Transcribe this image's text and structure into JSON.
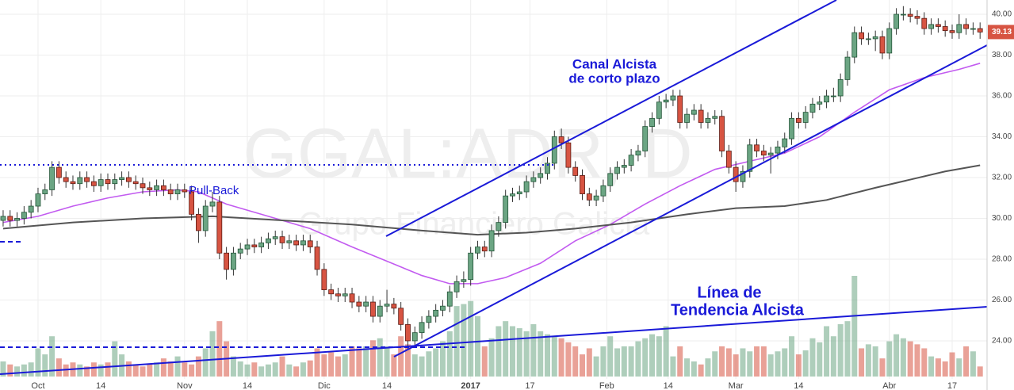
{
  "chart_data": {
    "type": "candlestick",
    "watermark": "GGAL:ADR, D",
    "watermark_subtitle": "Grupo Financiero Galicia",
    "annotations": {
      "channel": [
        "Canal Alcista",
        "de corto plazo"
      ],
      "trend": [
        "Línea de",
        "Tendencia Alcista"
      ],
      "pullback": "Pull-Back"
    },
    "xlim": [
      -0.45,
      141.0
    ],
    "xticks": [
      {
        "value": 5,
        "label": "Oct"
      },
      {
        "value": 14,
        "label": "14"
      },
      {
        "value": 26,
        "label": "Nov"
      },
      {
        "value": 35,
        "label": "14"
      },
      {
        "value": 46,
        "label": "Dic"
      },
      {
        "value": 55,
        "label": "14"
      },
      {
        "value": 67,
        "label": "2017"
      },
      {
        "value": 75.5,
        "label": "17"
      },
      {
        "value": 86.5,
        "label": "Feb"
      },
      {
        "value": 95.3,
        "label": "14"
      },
      {
        "value": 105,
        "label": "Mar"
      },
      {
        "value": 114,
        "label": "14"
      },
      {
        "value": 127,
        "label": "Abr"
      },
      {
        "value": 136,
        "label": "17"
      }
    ],
    "ylim": [
      21.59,
      40.7
    ],
    "yticks": [
      {
        "value": 24,
        "label": "24.00"
      },
      {
        "value": 26,
        "label": "26.00"
      },
      {
        "value": 28,
        "label": "28.00"
      },
      {
        "value": 30,
        "label": "30.00"
      },
      {
        "value": 32,
        "label": "32.00"
      },
      {
        "value": 34,
        "label": "34.00"
      },
      {
        "value": 36,
        "label": "36.00"
      },
      {
        "value": 38,
        "label": "38.00"
      },
      {
        "value": 40,
        "label": "40.00"
      }
    ],
    "grid": true,
    "up_color": "#6ba583",
    "down_color": "#d75442",
    "open": [
      29.9,
      30.1,
      29.9,
      30.0,
      30.3,
      30.6,
      31.2,
      31.4,
      32.5,
      32.0,
      31.8,
      31.7,
      32.0,
      31.8,
      31.6,
      31.9,
      31.7,
      31.9,
      32.0,
      31.8,
      31.7,
      31.5,
      31.4,
      31.6,
      31.4,
      31.2,
      31.4,
      31.3,
      30.2,
      29.4,
      30.6,
      30.8,
      28.3,
      27.5,
      28.3,
      28.5,
      28.7,
      28.6,
      28.8,
      29.0,
      29.1,
      28.8,
      28.9,
      28.7,
      28.9,
      28.6,
      27.5,
      26.5,
      26.3,
      26.2,
      26.3,
      25.9,
      25.7,
      25.9,
      25.2,
      25.7,
      25.8,
      25.6,
      24.8,
      24.0,
      24.4,
      24.9,
      25.2,
      25.5,
      25.7,
      26.4,
      26.9,
      27.0,
      28.3,
      28.6,
      28.4,
      29.4,
      29.8,
      31.1,
      31.2,
      31.3,
      31.8,
      32.0,
      32.2,
      32.7,
      34.0,
      33.7,
      32.5,
      32.1,
      31.2,
      30.9,
      31.1,
      31.6,
      32.2,
      32.5,
      32.6,
      33.1,
      33.3,
      34.5,
      34.9,
      35.7,
      35.8,
      36.0,
      34.7,
      35.1,
      35.3,
      34.7,
      34.9,
      35.0,
      33.3,
      32.5,
      31.8,
      32.3,
      33.6,
      33.3,
      33.1,
      33.2,
      33.5,
      33.9,
      34.9,
      34.7,
      35.2,
      35.6,
      35.7,
      36.0,
      36.0,
      36.8,
      37.9,
      39.1,
      38.8,
      38.8,
      38.9,
      38.1,
      39.3,
      40.0,
      40.0,
      39.9,
      39.8,
      39.3,
      39.5,
      39.4,
      39.2,
      39.1,
      39.5,
      39.3,
      39.3
    ],
    "high": [
      30.4,
      30.4,
      30.3,
      30.6,
      30.9,
      31.5,
      31.7,
      32.8,
      32.8,
      32.3,
      32.1,
      32.3,
      32.3,
      32.1,
      32.2,
      32.2,
      32.2,
      32.3,
      32.3,
      32.1,
      32.0,
      31.8,
      31.9,
      31.9,
      31.7,
      31.7,
      31.7,
      31.6,
      30.5,
      30.9,
      31.3,
      31.1,
      28.6,
      28.6,
      28.8,
      29.0,
      29.0,
      29.1,
      29.3,
      29.4,
      29.4,
      29.2,
      29.2,
      29.2,
      29.2,
      28.9,
      27.8,
      26.8,
      26.6,
      26.6,
      26.6,
      26.2,
      26.2,
      26.2,
      26.0,
      26.5,
      26.1,
      25.9,
      25.1,
      24.7,
      25.2,
      25.5,
      25.8,
      26.0,
      26.7,
      27.2,
      27.4,
      28.6,
      28.9,
      28.9,
      29.7,
      30.1,
      31.4,
      31.5,
      31.6,
      32.1,
      32.3,
      32.5,
      33.0,
      34.3,
      34.4,
      34.0,
      32.8,
      32.4,
      31.5,
      31.4,
      31.9,
      32.5,
      32.8,
      32.9,
      33.4,
      33.6,
      34.8,
      35.2,
      36.0,
      36.1,
      36.3,
      36.3,
      35.4,
      35.6,
      35.6,
      35.2,
      35.3,
      35.3,
      33.6,
      32.8,
      32.6,
      33.9,
      33.9,
      33.6,
      33.5,
      33.8,
      34.2,
      35.2,
      35.2,
      35.5,
      35.9,
      36.0,
      36.3,
      36.4,
      37.1,
      38.2,
      39.4,
      39.4,
      39.1,
      39.2,
      39.2,
      39.6,
      40.3,
      40.4,
      40.3,
      40.2,
      40.1,
      39.8,
      39.8,
      39.7,
      39.5,
      40.0,
      39.8,
      39.6,
      39.6
    ],
    "low": [
      29.6,
      29.6,
      29.6,
      29.7,
      30.0,
      30.3,
      30.9,
      31.1,
      31.7,
      31.5,
      31.4,
      31.4,
      31.5,
      31.3,
      31.3,
      31.4,
      31.4,
      31.6,
      31.5,
      31.4,
      31.2,
      31.1,
      31.1,
      31.1,
      30.9,
      30.9,
      31.0,
      29.9,
      28.8,
      29.1,
      30.3,
      28.0,
      27.0,
      27.2,
      28.0,
      28.2,
      28.3,
      28.3,
      28.5,
      28.7,
      28.5,
      28.5,
      28.4,
      28.4,
      28.3,
      27.2,
      26.2,
      26.0,
      25.9,
      25.9,
      25.6,
      25.4,
      25.4,
      24.9,
      24.9,
      25.4,
      25.3,
      24.5,
      23.6,
      23.7,
      24.1,
      24.6,
      24.9,
      25.2,
      25.4,
      26.1,
      26.6,
      26.7,
      28.0,
      28.1,
      28.1,
      29.1,
      29.5,
      30.8,
      30.9,
      31.0,
      31.5,
      31.7,
      31.9,
      32.4,
      33.4,
      32.2,
      31.8,
      30.9,
      30.6,
      30.6,
      30.8,
      31.3,
      31.9,
      32.2,
      32.3,
      32.8,
      33.0,
      34.2,
      34.6,
      35.4,
      35.5,
      34.4,
      34.4,
      34.8,
      34.4,
      34.4,
      34.6,
      33.0,
      32.2,
      31.3,
      31.5,
      32.0,
      33.0,
      32.8,
      32.2,
      32.9,
      33.2,
      33.6,
      34.4,
      34.4,
      34.9,
      35.3,
      35.4,
      35.7,
      35.7,
      36.5,
      37.6,
      38.5,
      38.5,
      38.2,
      37.8,
      37.8,
      39.0,
      39.7,
      39.6,
      39.5,
      39.0,
      39.0,
      39.1,
      38.9,
      38.8,
      38.8,
      39.0,
      39.0,
      38.8
    ],
    "close": [
      30.1,
      29.9,
      30.0,
      30.3,
      30.6,
      31.2,
      31.4,
      32.5,
      32.0,
      31.8,
      31.7,
      32.0,
      31.8,
      31.6,
      31.9,
      31.7,
      31.9,
      32.0,
      31.8,
      31.7,
      31.5,
      31.4,
      31.6,
      31.4,
      31.2,
      31.4,
      31.3,
      30.2,
      29.4,
      30.6,
      30.8,
      28.3,
      27.5,
      28.3,
      28.5,
      28.7,
      28.6,
      28.8,
      29.0,
      29.1,
      28.8,
      28.9,
      28.7,
      28.9,
      28.6,
      27.5,
      26.5,
      26.3,
      26.2,
      26.3,
      25.9,
      25.7,
      25.9,
      25.2,
      25.7,
      25.8,
      25.6,
      24.8,
      24.0,
      24.4,
      24.9,
      25.2,
      25.5,
      25.7,
      26.4,
      26.9,
      27.0,
      28.3,
      28.6,
      28.4,
      29.4,
      29.8,
      31.1,
      31.2,
      31.3,
      31.8,
      32.0,
      32.2,
      32.7,
      34.0,
      33.7,
      32.5,
      32.1,
      31.2,
      30.9,
      31.1,
      31.6,
      32.2,
      32.5,
      32.6,
      33.1,
      33.3,
      34.5,
      34.9,
      35.7,
      35.8,
      36.0,
      34.7,
      35.1,
      35.3,
      34.7,
      34.9,
      35.0,
      33.3,
      32.5,
      31.8,
      32.3,
      33.6,
      33.3,
      33.1,
      33.2,
      33.5,
      33.9,
      34.9,
      34.7,
      35.2,
      35.6,
      35.7,
      36.0,
      36.0,
      36.8,
      37.9,
      39.1,
      38.8,
      38.8,
      38.9,
      38.1,
      39.3,
      40.0,
      40.0,
      39.9,
      39.8,
      39.3,
      39.5,
      39.4,
      39.2,
      39.1,
      39.5,
      39.3,
      39.3,
      39.13
    ],
    "vlim": [
      0,
      100
    ],
    "volume": [
      15,
      12,
      10,
      12,
      14,
      28,
      22,
      40,
      18,
      12,
      14,
      12,
      10,
      14,
      12,
      14,
      35,
      22,
      15,
      12,
      10,
      12,
      14,
      18,
      15,
      20,
      14,
      12,
      20,
      28,
      45,
      55,
      35,
      20,
      15,
      12,
      14,
      10,
      12,
      14,
      20,
      12,
      10,
      14,
      16,
      28,
      22,
      24,
      20,
      22,
      30,
      28,
      30,
      36,
      38,
      30,
      22,
      40,
      32,
      22,
      20,
      25,
      28,
      35,
      45,
      70,
      72,
      75,
      60,
      30,
      38,
      50,
      55,
      50,
      48,
      45,
      52,
      45,
      42,
      40,
      38,
      34,
      30,
      22,
      28,
      20,
      30,
      40,
      28,
      30,
      30,
      35,
      38,
      42,
      40,
      50,
      20,
      30,
      18,
      15,
      12,
      18,
      25,
      30,
      28,
      22,
      28,
      25,
      30,
      30,
      22,
      25,
      28,
      40,
      22,
      26,
      38,
      34,
      50,
      40,
      52,
      55,
      100,
      28,
      32,
      30,
      18,
      35,
      42,
      38,
      35,
      32,
      28,
      20,
      18,
      15,
      24,
      18,
      30,
      25,
      10
    ],
    "series": [
      {
        "color": "#c25bf0",
        "x": [
          0,
          5,
          10,
          15,
          20,
          25,
          28,
          32,
          38,
          44,
          50,
          55,
          60,
          64,
          68,
          72,
          77,
          82,
          87,
          92,
          97,
          102,
          107,
          112,
          117,
          122,
          127,
          132,
          137,
          140
        ],
        "values": [
          29.8,
          30.1,
          30.6,
          31.0,
          31.3,
          31.4,
          31.3,
          30.7,
          30.1,
          29.5,
          28.6,
          27.9,
          27.2,
          26.8,
          26.8,
          27.1,
          27.8,
          28.9,
          29.7,
          30.7,
          31.6,
          32.4,
          32.8,
          33.2,
          34.0,
          35.2,
          36.3,
          36.9,
          37.3,
          37.6
        ]
      },
      {
        "color": "#555555",
        "x": [
          0,
          10,
          20,
          30,
          40,
          50,
          60,
          68,
          75,
          82,
          90,
          98,
          105,
          112,
          118,
          125,
          130,
          135,
          140
        ],
        "values": [
          29.5,
          29.8,
          30.0,
          30.1,
          29.9,
          29.7,
          29.4,
          29.2,
          29.3,
          29.5,
          29.8,
          30.2,
          30.5,
          30.6,
          30.9,
          31.5,
          31.9,
          32.3,
          32.6
        ]
      }
    ]
  }
}
